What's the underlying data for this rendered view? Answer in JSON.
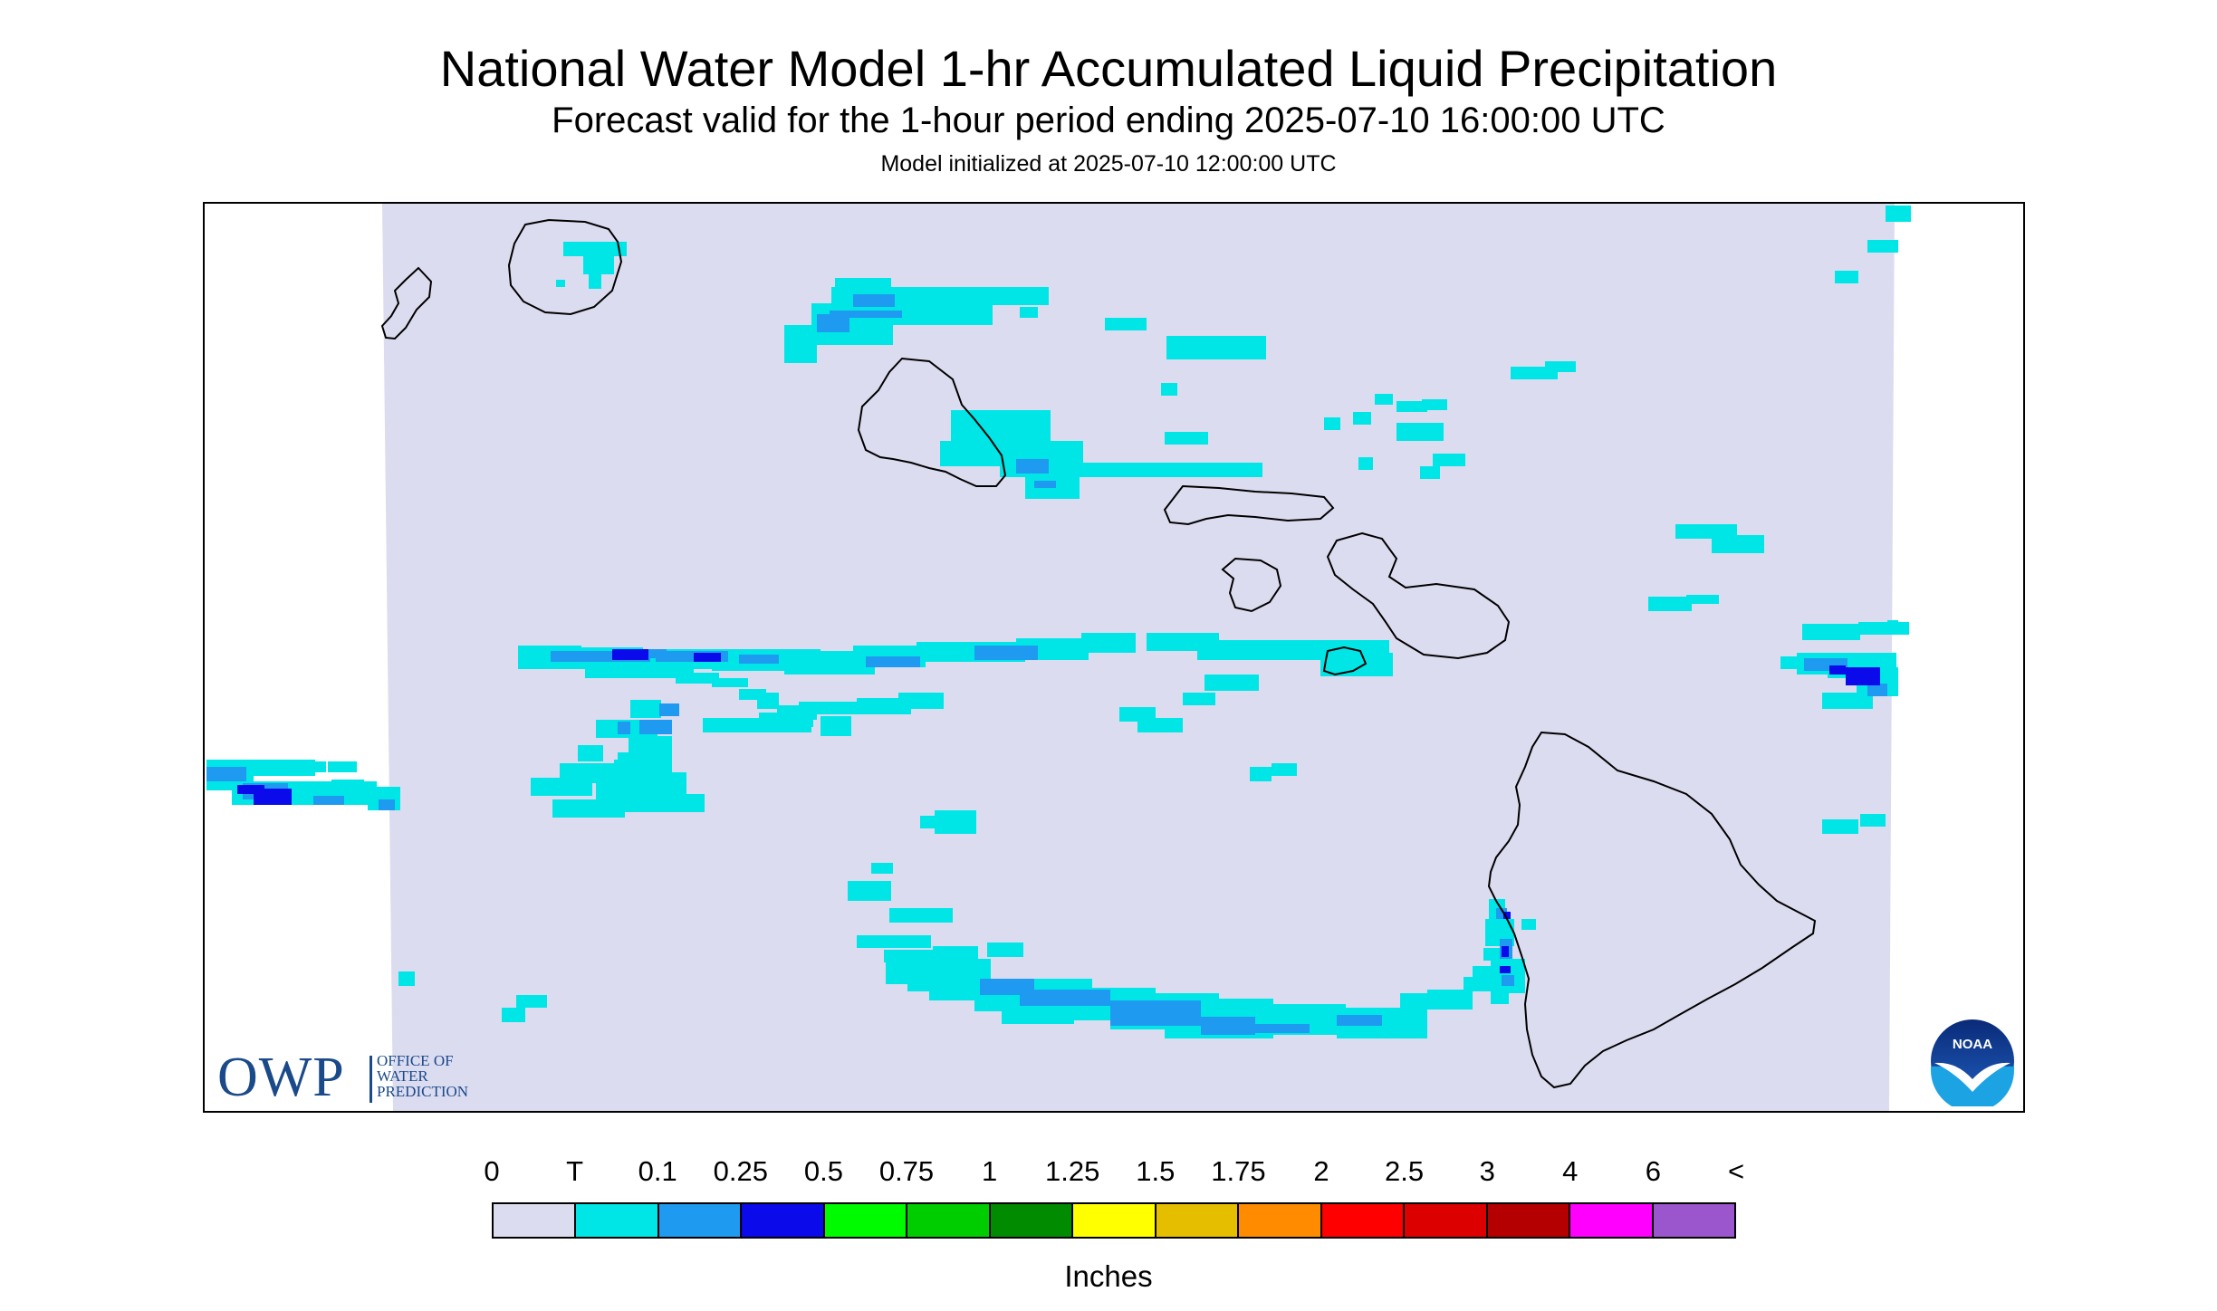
{
  "title": "National Water Model 1-hr Accumulated Liquid Precipitation",
  "subtitle": "Forecast valid for the 1-hour period ending 2025-07-10 16:00:00 UTC",
  "init_line": "Model initialized at 2025-07-10 12:00:00 UTC",
  "owp_logo": {
    "letters": "OWP",
    "line1": "OFFICE OF",
    "line2": "WATER",
    "line3": "PREDICTION"
  },
  "noaa_logo": {
    "text": "NOAA"
  },
  "legend": {
    "labels": [
      "0",
      "T",
      "0.1",
      "0.25",
      "0.5",
      "0.75",
      "1",
      "1.25",
      "1.5",
      "1.75",
      "2",
      "2.5",
      "3",
      "4",
      "6",
      "<"
    ],
    "colors": [
      "#dcdcf0",
      "#00e6e6",
      "#1e9bf0",
      "#0a0aeb",
      "#00fa00",
      "#00cd00",
      "#008b00",
      "#ffff00",
      "#e6be00",
      "#ff8c00",
      "#ff0000",
      "#dc0000",
      "#b40000",
      "#ff00ff",
      "#9b55cd"
    ],
    "units": "Inches"
  },
  "map": {
    "domain_color": "#dcdcf0",
    "coast_color": "#000000",
    "precip_colors": {
      "trace": "#00e6e6",
      "light": "#1e9bf0",
      "moderate": "#0a0aeb"
    }
  }
}
